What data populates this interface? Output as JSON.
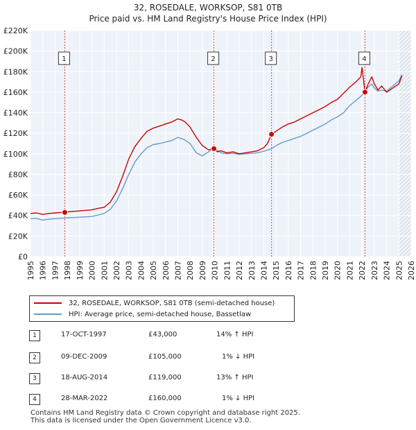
{
  "title": "32, ROSEDALE, WORKSOP, S81 0TB",
  "subtitle": "Price paid vs. HM Land Registry's House Price Index (HPI)",
  "chart_data": {
    "type": "line",
    "title": "32, ROSEDALE, WORKSOP, S81 0TB",
    "subtitle": "Price paid vs. HM Land Registry's House Price Index (HPI)",
    "xlabel": "",
    "ylabel": "",
    "xlim": [
      1995,
      2026
    ],
    "ylim": [
      0,
      220000
    ],
    "x_ticks": [
      "1995",
      "1996",
      "1997",
      "1998",
      "1999",
      "2000",
      "2001",
      "2002",
      "2003",
      "2004",
      "2005",
      "2006",
      "2007",
      "2008",
      "2009",
      "2010",
      "2011",
      "2012",
      "2013",
      "2014",
      "2015",
      "2016",
      "2017",
      "2018",
      "2019",
      "2020",
      "2021",
      "2022",
      "2023",
      "2024",
      "2025",
      "2026"
    ],
    "y_ticks": [
      {
        "value": 0,
        "label": "£0"
      },
      {
        "value": 20000,
        "label": "£20K"
      },
      {
        "value": 40000,
        "label": "£40K"
      },
      {
        "value": 60000,
        "label": "£60K"
      },
      {
        "value": 80000,
        "label": "£80K"
      },
      {
        "value": 100000,
        "label": "£100K"
      },
      {
        "value": 120000,
        "label": "£120K"
      },
      {
        "value": 140000,
        "label": "£140K"
      },
      {
        "value": 160000,
        "label": "£160K"
      },
      {
        "value": 180000,
        "label": "£180K"
      },
      {
        "value": 200000,
        "label": "£200K"
      },
      {
        "value": 220000,
        "label": "£220K"
      }
    ],
    "grid": true,
    "future_hatch_start": 2025.0,
    "series": [
      {
        "name": "32, ROSEDALE, WORKSOP, S81 0TB (semi-detached house)",
        "color": "#cc0000",
        "x": [
          1995,
          1995.5,
          1996,
          1996.5,
          1997,
          1997.5,
          1997.79,
          1998,
          1998.5,
          1999,
          1999.5,
          2000,
          2000.5,
          2001,
          2001.5,
          2002,
          2002.5,
          2003,
          2003.5,
          2004,
          2004.5,
          2005,
          2005.5,
          2006,
          2006.5,
          2007,
          2007.3,
          2007.6,
          2008,
          2008.5,
          2009,
          2009.5,
          2009.94,
          2010.2,
          2010.5,
          2011,
          2011.5,
          2012,
          2012.5,
          2013,
          2013.5,
          2014,
          2014.3,
          2014.63,
          2015,
          2015.5,
          2016,
          2016.5,
          2017,
          2017.5,
          2018,
          2018.5,
          2019,
          2019.5,
          2020,
          2020.5,
          2021,
          2021.5,
          2021.9,
          2022.0,
          2022.24,
          2022.5,
          2022.8,
          2023,
          2023.3,
          2023.6,
          2024,
          2024.5,
          2025,
          2025.25
        ],
        "y": [
          42000,
          42500,
          41000,
          42000,
          42500,
          43000,
          43000,
          43500,
          44000,
          44500,
          45000,
          45500,
          47000,
          48000,
          53000,
          63000,
          78000,
          95000,
          107000,
          115000,
          122000,
          125000,
          127000,
          129000,
          131000,
          134000,
          133000,
          131000,
          126000,
          116000,
          108000,
          104000,
          105000,
          102000,
          103000,
          101000,
          102000,
          100000,
          101000,
          102000,
          103000,
          106000,
          110000,
          119000,
          122000,
          126000,
          129000,
          131000,
          134000,
          137000,
          140000,
          143000,
          146000,
          150000,
          153000,
          159000,
          165000,
          170000,
          175000,
          184000,
          160000,
          168000,
          175000,
          168000,
          162000,
          166000,
          160000,
          164000,
          168000,
          176000
        ]
      },
      {
        "name": "HPI: Average price, semi-detached house, Bassetlaw",
        "color": "#6699cc",
        "x": [
          1995,
          1995.5,
          1996,
          1996.5,
          1997,
          1997.5,
          1997.79,
          1998,
          1998.5,
          1999,
          1999.5,
          2000,
          2000.5,
          2001,
          2001.5,
          2002,
          2002.5,
          2003,
          2003.5,
          2004,
          2004.5,
          2005,
          2005.5,
          2006,
          2006.5,
          2007,
          2007.5,
          2008,
          2008.5,
          2009,
          2009.5,
          2009.94,
          2010.5,
          2011,
          2011.5,
          2012,
          2012.5,
          2013,
          2013.5,
          2014,
          2014.63,
          2015,
          2015.5,
          2016,
          2016.5,
          2017,
          2017.5,
          2018,
          2018.5,
          2019,
          2019.5,
          2020,
          2020.5,
          2021,
          2021.5,
          2022,
          2022.24,
          2022.5,
          2022.8,
          2023,
          2023.3,
          2023.6,
          2024,
          2024.5,
          2025,
          2025.25
        ],
        "y": [
          37000,
          37200,
          35500,
          36500,
          37000,
          37300,
          37500,
          37800,
          38000,
          38300,
          38700,
          39000,
          40500,
          42000,
          46000,
          54000,
          66000,
          80000,
          92000,
          100000,
          106000,
          109000,
          110000,
          111500,
          113000,
          116000,
          114000,
          110000,
          101000,
          98000,
          102000,
          106000,
          101000,
          100000,
          100500,
          99500,
          100000,
          100500,
          101000,
          102500,
          105000,
          108000,
          111000,
          113000,
          115000,
          117000,
          120000,
          123000,
          126000,
          129000,
          133000,
          136000,
          140000,
          147000,
          152000,
          157000,
          161000,
          165000,
          168000,
          164000,
          161000,
          162000,
          161000,
          166000,
          171000,
          177000
        ]
      }
    ],
    "sales": [
      {
        "num": "1",
        "x": 1997.79,
        "y": 43000
      },
      {
        "num": "2",
        "x": 2009.94,
        "y": 105000
      },
      {
        "num": "3",
        "x": 2014.63,
        "y": 119000
      },
      {
        "num": "4",
        "x": 2022.24,
        "y": 160000
      }
    ]
  },
  "legend": {
    "property_label": "32, ROSEDALE, WORKSOP, S81 0TB (semi-detached house)",
    "hpi_label": "HPI: Average price, semi-detached house, Bassetlaw",
    "property_color": "#cc0000",
    "hpi_color": "#6699cc"
  },
  "transactions": [
    {
      "num": "1",
      "date": "17-OCT-1997",
      "price": "£43,000",
      "hpi": "14% ↑ HPI"
    },
    {
      "num": "2",
      "date": "09-DEC-2009",
      "price": "£105,000",
      "hpi": "1% ↓ HPI"
    },
    {
      "num": "3",
      "date": "18-AUG-2014",
      "price": "£119,000",
      "hpi": "13% ↑ HPI"
    },
    {
      "num": "4",
      "date": "28-MAR-2022",
      "price": "£160,000",
      "hpi": "1% ↓ HPI"
    }
  ],
  "footer": {
    "line1": "Contains HM Land Registry data © Crown copyright and database right 2025.",
    "line2": "This data is licensed under the Open Government Licence v3.0."
  }
}
